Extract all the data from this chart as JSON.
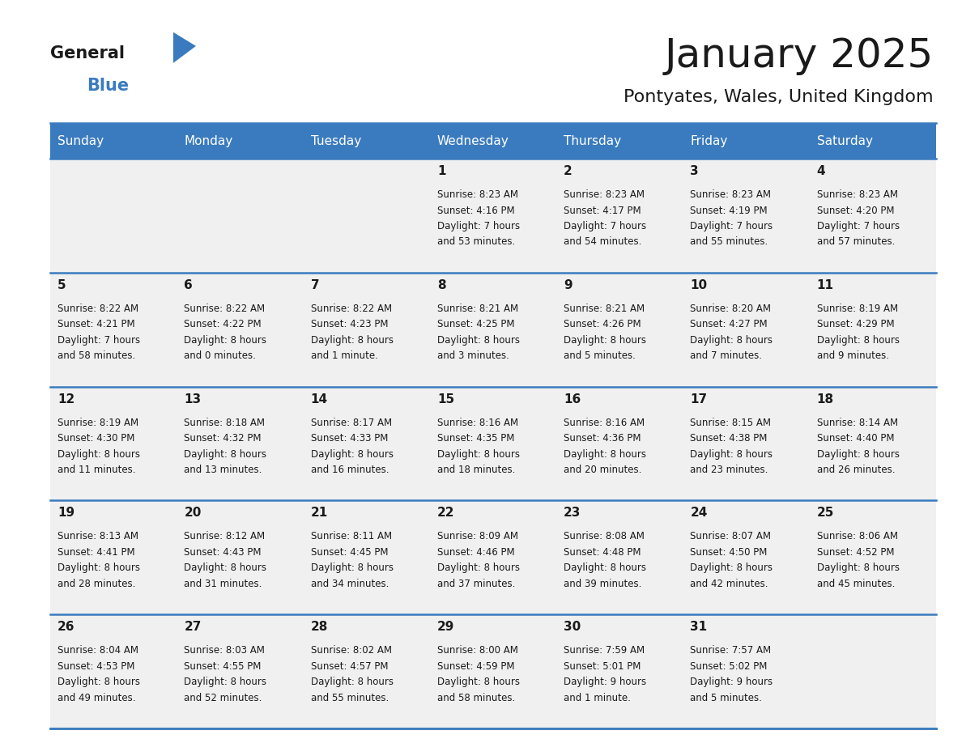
{
  "title": "January 2025",
  "subtitle": "Pontyates, Wales, United Kingdom",
  "header_bg": "#3a7bbf",
  "header_text_color": "#ffffff",
  "cell_bg_light": "#f0f0f0",
  "border_color": "#3a7bbf",
  "text_color": "#1a1a1a",
  "days_of_week": [
    "Sunday",
    "Monday",
    "Tuesday",
    "Wednesday",
    "Thursday",
    "Friday",
    "Saturday"
  ],
  "calendar_data": [
    [
      {
        "day": "",
        "sunrise": "",
        "sunset": "",
        "daylight": ""
      },
      {
        "day": "",
        "sunrise": "",
        "sunset": "",
        "daylight": ""
      },
      {
        "day": "",
        "sunrise": "",
        "sunset": "",
        "daylight": ""
      },
      {
        "day": "1",
        "sunrise": "8:23 AM",
        "sunset": "4:16 PM",
        "daylight": "7 hours and 53 minutes."
      },
      {
        "day": "2",
        "sunrise": "8:23 AM",
        "sunset": "4:17 PM",
        "daylight": "7 hours and 54 minutes."
      },
      {
        "day": "3",
        "sunrise": "8:23 AM",
        "sunset": "4:19 PM",
        "daylight": "7 hours and 55 minutes."
      },
      {
        "day": "4",
        "sunrise": "8:23 AM",
        "sunset": "4:20 PM",
        "daylight": "7 hours and 57 minutes."
      }
    ],
    [
      {
        "day": "5",
        "sunrise": "8:22 AM",
        "sunset": "4:21 PM",
        "daylight": "7 hours and 58 minutes."
      },
      {
        "day": "6",
        "sunrise": "8:22 AM",
        "sunset": "4:22 PM",
        "daylight": "8 hours and 0 minutes."
      },
      {
        "day": "7",
        "sunrise": "8:22 AM",
        "sunset": "4:23 PM",
        "daylight": "8 hours and 1 minute."
      },
      {
        "day": "8",
        "sunrise": "8:21 AM",
        "sunset": "4:25 PM",
        "daylight": "8 hours and 3 minutes."
      },
      {
        "day": "9",
        "sunrise": "8:21 AM",
        "sunset": "4:26 PM",
        "daylight": "8 hours and 5 minutes."
      },
      {
        "day": "10",
        "sunrise": "8:20 AM",
        "sunset": "4:27 PM",
        "daylight": "8 hours and 7 minutes."
      },
      {
        "day": "11",
        "sunrise": "8:19 AM",
        "sunset": "4:29 PM",
        "daylight": "8 hours and 9 minutes."
      }
    ],
    [
      {
        "day": "12",
        "sunrise": "8:19 AM",
        "sunset": "4:30 PM",
        "daylight": "8 hours and 11 minutes."
      },
      {
        "day": "13",
        "sunrise": "8:18 AM",
        "sunset": "4:32 PM",
        "daylight": "8 hours and 13 minutes."
      },
      {
        "day": "14",
        "sunrise": "8:17 AM",
        "sunset": "4:33 PM",
        "daylight": "8 hours and 16 minutes."
      },
      {
        "day": "15",
        "sunrise": "8:16 AM",
        "sunset": "4:35 PM",
        "daylight": "8 hours and 18 minutes."
      },
      {
        "day": "16",
        "sunrise": "8:16 AM",
        "sunset": "4:36 PM",
        "daylight": "8 hours and 20 minutes."
      },
      {
        "day": "17",
        "sunrise": "8:15 AM",
        "sunset": "4:38 PM",
        "daylight": "8 hours and 23 minutes."
      },
      {
        "day": "18",
        "sunrise": "8:14 AM",
        "sunset": "4:40 PM",
        "daylight": "8 hours and 26 minutes."
      }
    ],
    [
      {
        "day": "19",
        "sunrise": "8:13 AM",
        "sunset": "4:41 PM",
        "daylight": "8 hours and 28 minutes."
      },
      {
        "day": "20",
        "sunrise": "8:12 AM",
        "sunset": "4:43 PM",
        "daylight": "8 hours and 31 minutes."
      },
      {
        "day": "21",
        "sunrise": "8:11 AM",
        "sunset": "4:45 PM",
        "daylight": "8 hours and 34 minutes."
      },
      {
        "day": "22",
        "sunrise": "8:09 AM",
        "sunset": "4:46 PM",
        "daylight": "8 hours and 37 minutes."
      },
      {
        "day": "23",
        "sunrise": "8:08 AM",
        "sunset": "4:48 PM",
        "daylight": "8 hours and 39 minutes."
      },
      {
        "day": "24",
        "sunrise": "8:07 AM",
        "sunset": "4:50 PM",
        "daylight": "8 hours and 42 minutes."
      },
      {
        "day": "25",
        "sunrise": "8:06 AM",
        "sunset": "4:52 PM",
        "daylight": "8 hours and 45 minutes."
      }
    ],
    [
      {
        "day": "26",
        "sunrise": "8:04 AM",
        "sunset": "4:53 PM",
        "daylight": "8 hours and 49 minutes."
      },
      {
        "day": "27",
        "sunrise": "8:03 AM",
        "sunset": "4:55 PM",
        "daylight": "8 hours and 52 minutes."
      },
      {
        "day": "28",
        "sunrise": "8:02 AM",
        "sunset": "4:57 PM",
        "daylight": "8 hours and 55 minutes."
      },
      {
        "day": "29",
        "sunrise": "8:00 AM",
        "sunset": "4:59 PM",
        "daylight": "8 hours and 58 minutes."
      },
      {
        "day": "30",
        "sunrise": "7:59 AM",
        "sunset": "5:01 PM",
        "daylight": "9 hours and 1 minute."
      },
      {
        "day": "31",
        "sunrise": "7:57 AM",
        "sunset": "5:02 PM",
        "daylight": "9 hours and 5 minutes."
      },
      {
        "day": "",
        "sunrise": "",
        "sunset": "",
        "daylight": ""
      }
    ]
  ],
  "logo_general_color": "#1a1a1a",
  "logo_blue_color": "#3a7bbf",
  "logo_triangle_color": "#3a7bbf"
}
